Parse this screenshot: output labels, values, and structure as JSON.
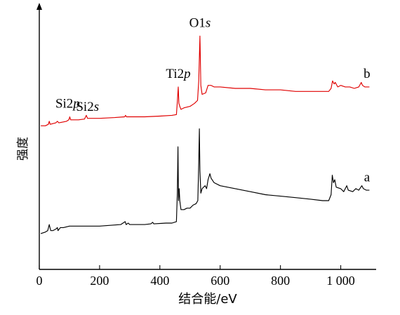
{
  "chart_data": {
    "type": "line",
    "xlabel": "结合能/eV",
    "ylabel": "强度",
    "xlim": [
      0,
      1100
    ],
    "x_ticks": [
      "0",
      "200",
      "400",
      "600",
      "800",
      "1 000"
    ],
    "x_tick_values": [
      0,
      200,
      400,
      600,
      800,
      1000
    ],
    "y_ticks_shown": false,
    "grid": false,
    "legend": "none",
    "series": [
      {
        "name": "a",
        "color": "#000000",
        "points": [
          [
            5,
            0.08
          ],
          [
            20,
            0.09
          ],
          [
            28,
            0.1
          ],
          [
            33,
            0.14
          ],
          [
            38,
            0.1
          ],
          [
            45,
            0.1
          ],
          [
            55,
            0.11
          ],
          [
            60,
            0.12
          ],
          [
            62,
            0.1
          ],
          [
            70,
            0.12
          ],
          [
            80,
            0.12
          ],
          [
            100,
            0.13
          ],
          [
            150,
            0.13
          ],
          [
            200,
            0.13
          ],
          [
            270,
            0.14
          ],
          [
            285,
            0.16
          ],
          [
            288,
            0.14
          ],
          [
            295,
            0.15
          ],
          [
            300,
            0.14
          ],
          [
            350,
            0.14
          ],
          [
            370,
            0.145
          ],
          [
            376,
            0.155
          ],
          [
            380,
            0.145
          ],
          [
            420,
            0.15
          ],
          [
            440,
            0.15
          ],
          [
            455,
            0.16
          ],
          [
            458,
            0.35
          ],
          [
            460,
            0.66
          ],
          [
            462,
            0.3
          ],
          [
            464,
            0.38
          ],
          [
            466,
            0.3
          ],
          [
            470,
            0.24
          ],
          [
            480,
            0.24
          ],
          [
            490,
            0.25
          ],
          [
            500,
            0.25
          ],
          [
            510,
            0.27
          ],
          [
            520,
            0.28
          ],
          [
            526,
            0.3
          ],
          [
            529,
            0.55
          ],
          [
            531,
            0.78
          ],
          [
            533,
            0.5
          ],
          [
            536,
            0.35
          ],
          [
            540,
            0.38
          ],
          [
            550,
            0.4
          ],
          [
            555,
            0.38
          ],
          [
            560,
            0.44
          ],
          [
            566,
            0.48
          ],
          [
            570,
            0.45
          ],
          [
            580,
            0.42
          ],
          [
            600,
            0.4
          ],
          [
            650,
            0.38
          ],
          [
            700,
            0.36
          ],
          [
            750,
            0.34
          ],
          [
            800,
            0.33
          ],
          [
            850,
            0.32
          ],
          [
            900,
            0.31
          ],
          [
            940,
            0.3
          ],
          [
            960,
            0.3
          ],
          [
            968,
            0.34
          ],
          [
            972,
            0.47
          ],
          [
            976,
            0.42
          ],
          [
            980,
            0.44
          ],
          [
            985,
            0.39
          ],
          [
            1000,
            0.38
          ],
          [
            1010,
            0.36
          ],
          [
            1020,
            0.4
          ],
          [
            1025,
            0.37
          ],
          [
            1040,
            0.36
          ],
          [
            1050,
            0.38
          ],
          [
            1060,
            0.37
          ],
          [
            1070,
            0.4
          ],
          [
            1075,
            0.38
          ],
          [
            1085,
            0.37
          ],
          [
            1095,
            0.37
          ]
        ]
      },
      {
        "name": "b",
        "color": "#e00000",
        "points": [
          [
            5,
            0.8
          ],
          [
            20,
            0.8
          ],
          [
            30,
            0.81
          ],
          [
            33,
            0.83
          ],
          [
            36,
            0.81
          ],
          [
            55,
            0.82
          ],
          [
            60,
            0.83
          ],
          [
            65,
            0.82
          ],
          [
            90,
            0.83
          ],
          [
            98,
            0.84
          ],
          [
            101,
            0.86
          ],
          [
            104,
            0.84
          ],
          [
            130,
            0.84
          ],
          [
            150,
            0.845
          ],
          [
            156,
            0.87
          ],
          [
            160,
            0.85
          ],
          [
            200,
            0.85
          ],
          [
            250,
            0.855
          ],
          [
            283,
            0.86
          ],
          [
            286,
            0.87
          ],
          [
            289,
            0.86
          ],
          [
            350,
            0.86
          ],
          [
            400,
            0.865
          ],
          [
            440,
            0.87
          ],
          [
            455,
            0.875
          ],
          [
            458,
            0.96
          ],
          [
            461,
            1.06
          ],
          [
            463,
            0.95
          ],
          [
            466,
            0.93
          ],
          [
            470,
            0.91
          ],
          [
            480,
            0.92
          ],
          [
            500,
            0.93
          ],
          [
            515,
            0.95
          ],
          [
            525,
            0.97
          ],
          [
            529,
            1.1
          ],
          [
            533,
            1.4
          ],
          [
            536,
            1.07
          ],
          [
            540,
            1.01
          ],
          [
            552,
            1.02
          ],
          [
            560,
            1.07
          ],
          [
            570,
            1.07
          ],
          [
            580,
            1.06
          ],
          [
            600,
            1.06
          ],
          [
            650,
            1.05
          ],
          [
            700,
            1.05
          ],
          [
            750,
            1.04
          ],
          [
            800,
            1.04
          ],
          [
            850,
            1.03
          ],
          [
            900,
            1.03
          ],
          [
            940,
            1.03
          ],
          [
            960,
            1.03
          ],
          [
            968,
            1.05
          ],
          [
            973,
            1.1
          ],
          [
            978,
            1.08
          ],
          [
            982,
            1.09
          ],
          [
            990,
            1.06
          ],
          [
            1000,
            1.07
          ],
          [
            1015,
            1.06
          ],
          [
            1030,
            1.06
          ],
          [
            1045,
            1.05
          ],
          [
            1060,
            1.06
          ],
          [
            1068,
            1.09
          ],
          [
            1072,
            1.07
          ],
          [
            1080,
            1.06
          ],
          [
            1095,
            1.06
          ]
        ]
      }
    ],
    "annotations": [
      {
        "text": "O1",
        "italic": "s",
        "x": 533,
        "y": 1.46,
        "anchor": "middle"
      },
      {
        "text": "Ti2",
        "italic": "p",
        "x": 461,
        "y": 1.12,
        "anchor": "middle"
      },
      {
        "text": "Si2",
        "italic": "p",
        "x": 94,
        "y": 0.92,
        "anchor": "middle"
      },
      {
        "text": "Si2",
        "italic": "s",
        "x": 160,
        "y": 0.9,
        "anchor": "middle"
      },
      {
        "text": "b",
        "italic": "",
        "x": 1087,
        "y": 1.12,
        "anchor": "middle"
      },
      {
        "text": "a",
        "italic": "",
        "x": 1087,
        "y": 0.43,
        "anchor": "middle"
      }
    ]
  }
}
